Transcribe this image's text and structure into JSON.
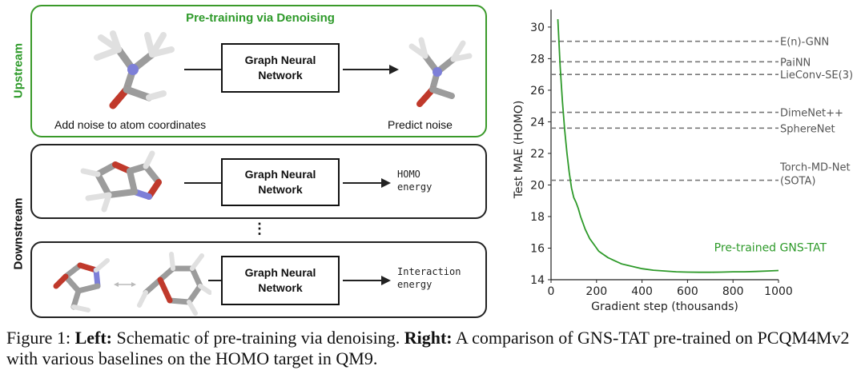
{
  "schematic": {
    "upstream_title": "Pre-training via Denoising",
    "upstream_label": "Upstream",
    "downstream_label": "Downstream",
    "gnn_line1": "Graph Neural",
    "gnn_line2": "Network",
    "noise_caption": "Add noise to atom coordinates",
    "predict_caption": "Predict noise",
    "homo_line1": "HOMO",
    "homo_line2": "energy",
    "interaction_line1": "Interaction",
    "interaction_line2": "energy",
    "ellipsis": "⋮"
  },
  "chart_data": {
    "type": "line",
    "xlabel": "Gradient step (thousands)",
    "ylabel": "Test MAE (HOMO)",
    "xlim": [
      0,
      1000
    ],
    "ylim": [
      14,
      30.5
    ],
    "xticks": [
      0,
      200,
      400,
      600,
      800,
      1000
    ],
    "yticks": [
      14,
      16,
      18,
      20,
      22,
      24,
      26,
      28,
      30
    ],
    "baselines": [
      {
        "name": "E(n)-GNN",
        "value": 29.1
      },
      {
        "name": "PaiNN",
        "value": 27.8
      },
      {
        "name": "LieConv-SE(3)",
        "value": 27.0
      },
      {
        "name": "DimeNet++",
        "value": 24.6
      },
      {
        "name": "SphereNet",
        "value": 23.6
      },
      {
        "name": "Torch-MD-Net",
        "name2": "(SOTA)",
        "value": 20.3
      }
    ],
    "series": [
      {
        "name": "Pre-trained GNS-TAT",
        "color": "#2e9a2a",
        "x": [
          30,
          40,
          50,
          60,
          70,
          80,
          90,
          100,
          110,
          120,
          130,
          140,
          150,
          170,
          190,
          210,
          230,
          250,
          280,
          310,
          340,
          370,
          400,
          450,
          500,
          550,
          600,
          650,
          700,
          750,
          800,
          850,
          900,
          950,
          1000
        ],
        "y": [
          30.5,
          27.5,
          25.3,
          23.5,
          22.0,
          20.8,
          19.8,
          19.2,
          18.9,
          18.5,
          18.0,
          17.6,
          17.2,
          16.6,
          16.2,
          15.8,
          15.6,
          15.4,
          15.2,
          15.0,
          14.9,
          14.8,
          14.7,
          14.6,
          14.55,
          14.5,
          14.48,
          14.47,
          14.47,
          14.48,
          14.5,
          14.5,
          14.52,
          14.55,
          14.58
        ]
      }
    ]
  },
  "caption": {
    "figure": "Figure 1: ",
    "left_bold": "Left:",
    "left_text": " Schematic of pre-training via denoising. ",
    "right_bold": "Right:",
    "right_text": " A comparison of GNS-TAT pre-trained on PCQM4Mv2 with various baselines on the HOMO target in QM9."
  },
  "colors": {
    "green": "#2e9a2a",
    "carbon": "#9c9c9c",
    "nitrogen": "#7d7fd8",
    "oxygen": "#c0392b",
    "hydrogen": "#e0e0e0"
  }
}
